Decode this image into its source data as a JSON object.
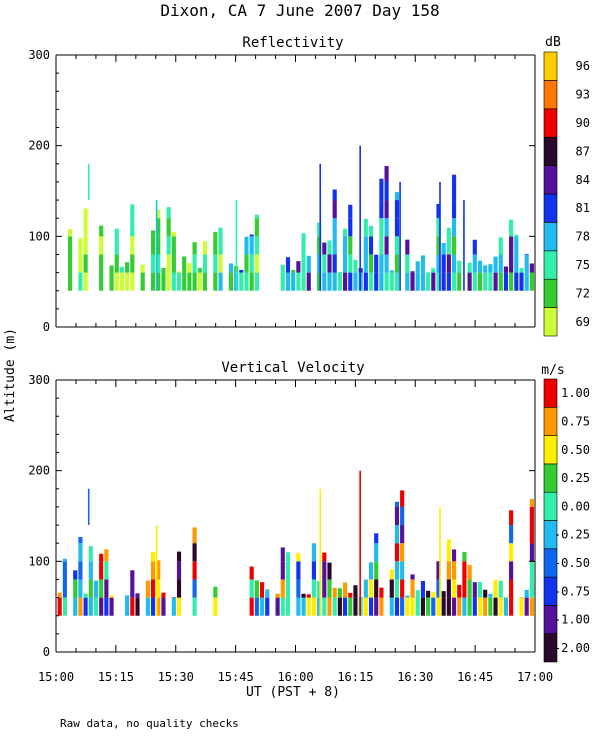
{
  "title": "Dixon, CA  7 June 2007  Day 158",
  "ylabel": "Altitude (m)",
  "xlabel": "UT  (PST + 8)",
  "footnote": "Raw data, no quality checks",
  "x_ticks": [
    "15:00",
    "15:15",
    "15:30",
    "15:45",
    "16:00",
    "16:15",
    "16:30",
    "16:45",
    "17:00"
  ],
  "chart_data": [
    {
      "type": "heatmap",
      "title": "Reflectivity",
      "ylabel": "Altitude (m)",
      "xlabel": "UT  (PST + 8)",
      "xlim_minutes_after_1500": [
        0,
        120
      ],
      "ylim": [
        0,
        300
      ],
      "y_ticks": [
        "0",
        "100",
        "200",
        "300"
      ],
      "colorbar": {
        "unit": "dB",
        "labels": [
          "69",
          "72",
          "75",
          "78",
          "81",
          "84",
          "87",
          "90",
          "93",
          "96"
        ],
        "colors": [
          "#ccff33",
          "#33cc33",
          "#33eeaa",
          "#22bbee",
          "#1133ee",
          "#551199",
          "#2a0a2a",
          "#ee0000",
          "#ff7700",
          "#ffcc00"
        ]
      },
      "base_altitude_m": 40,
      "max_observed_altitude_m": 200,
      "echo_features": [
        {
          "time_min": 8,
          "top_m": 180,
          "bottom_m": 140,
          "class": "75"
        },
        {
          "time_min": 25,
          "top_m": 140,
          "bottom_m": 40,
          "class": "78"
        },
        {
          "time_min": 45,
          "top_m": 140,
          "bottom_m": 40,
          "class": "75"
        },
        {
          "time_min": 66,
          "top_m": 180,
          "bottom_m": 40,
          "class": "81"
        },
        {
          "time_min": 76,
          "top_m": 200,
          "bottom_m": 40,
          "class": "81"
        },
        {
          "time_min": 86,
          "top_m": 160,
          "bottom_m": 40,
          "class": "81"
        },
        {
          "time_min": 96,
          "top_m": 160,
          "bottom_m": 40,
          "class": "81"
        },
        {
          "time_min": 102,
          "top_m": 140,
          "bottom_m": 40,
          "class": "81"
        }
      ]
    },
    {
      "type": "heatmap",
      "title": "Vertical Velocity",
      "ylabel": "Altitude (m)",
      "xlabel": "UT  (PST + 8)",
      "xlim_minutes_after_1500": [
        0,
        120
      ],
      "ylim": [
        0,
        300
      ],
      "y_ticks": [
        "0",
        "100",
        "200",
        "300"
      ],
      "colorbar": {
        "unit": "m/s",
        "labels": [
          "-2.00",
          "-1.00",
          "-0.75",
          "-0.50",
          "-0.25",
          "0.00",
          "0.25",
          "0.50",
          "0.75",
          "1.00"
        ],
        "colors": [
          "#2a0a2a",
          "#551199",
          "#1133ee",
          "#1166ee",
          "#22bbee",
          "#33eeaa",
          "#33cc33",
          "#ffee00",
          "#ff9900",
          "#ee0000"
        ]
      },
      "base_altitude_m": 40,
      "max_observed_altitude_m": 200,
      "echo_features": [
        {
          "time_min": 8,
          "top_m": 180,
          "bottom_m": 140,
          "class": "-0.50"
        },
        {
          "time_min": 25,
          "top_m": 140,
          "bottom_m": 40,
          "class": "0.50"
        },
        {
          "time_min": 66,
          "top_m": 180,
          "bottom_m": 40,
          "class": "0.50"
        },
        {
          "time_min": 76,
          "top_m": 200,
          "bottom_m": 40,
          "class": "1.00"
        },
        {
          "time_min": 96,
          "top_m": 160,
          "bottom_m": 40,
          "class": "0.50"
        }
      ]
    }
  ]
}
